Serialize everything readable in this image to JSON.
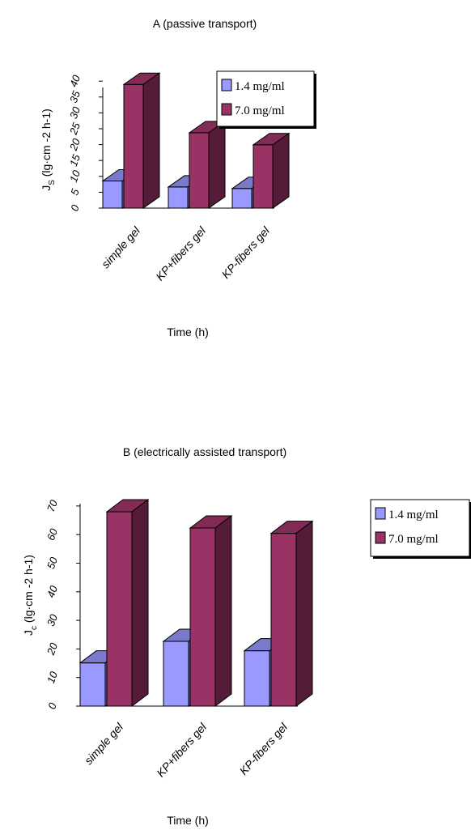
{
  "chart_data": [
    {
      "type": "bar",
      "title": "A (passive transport)",
      "xlabel": "Time (h)",
      "ylabel": "J",
      "ylabel_sub": "S",
      "ylabel_unit": "(lg·cm -2 h-1)",
      "categories": [
        "simple gel",
        "KP+fibers gel",
        "KP-fibers gel"
      ],
      "yticks": [
        "0",
        "5",
        "10",
        "15",
        "20",
        "25",
        "30",
        "35",
        "40"
      ],
      "ylim": [
        0,
        40
      ],
      "legend_position": "top-right",
      "series": [
        {
          "name": "1.4 mg/ml",
          "values": [
            9,
            7,
            6.5
          ],
          "color": "#9999ff"
        },
        {
          "name": "7.0 mg/ml",
          "values": [
            41,
            25,
            21
          ],
          "color": "#993366"
        }
      ]
    },
    {
      "type": "bar",
      "title": "B (electrically assisted transport)",
      "xlabel": "Time (h)",
      "ylabel": "J",
      "ylabel_sub": "c",
      "ylabel_unit": "(lg·cm -2 h-1)",
      "categories": [
        "simple gel",
        "KP+fibers gel",
        "KP-fibers gel"
      ],
      "yticks": [
        "0",
        "10",
        "20",
        "30",
        "40",
        "50",
        "60",
        "70"
      ],
      "ylim": [
        0,
        75
      ],
      "legend_position": "right",
      "series": [
        {
          "name": "1.4 mg/ml",
          "values": [
            16,
            24,
            20.5
          ],
          "color": "#9999ff"
        },
        {
          "name": "7.0 mg/ml",
          "values": [
            72,
            66,
            64
          ],
          "color": "#993366"
        }
      ]
    }
  ]
}
